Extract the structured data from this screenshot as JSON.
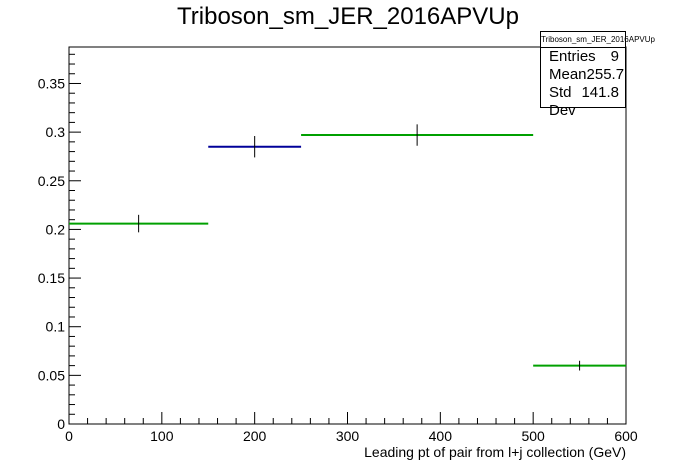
{
  "chart_data": {
    "type": "histogram",
    "title": "Triboson_sm_JER_2016APVUp",
    "xlabel": "Leading pt of pair from l+j collection (GeV)",
    "ylabel": "",
    "xlim": [
      0,
      600
    ],
    "ylim": [
      0,
      0.3875
    ],
    "x_ticks": [
      "0",
      "100",
      "200",
      "300",
      "400",
      "500",
      "600"
    ],
    "y_ticks": [
      "0",
      "0.05",
      "0.1",
      "0.15",
      "0.2",
      "0.25",
      "0.3",
      "0.35"
    ],
    "bins": [
      {
        "x_low": 0,
        "x_high": 150,
        "value": 0.206,
        "error": 0.009,
        "color": "#00a000"
      },
      {
        "x_low": 150,
        "x_high": 250,
        "value": 0.285,
        "error": 0.011,
        "color": "#000099"
      },
      {
        "x_low": 250,
        "x_high": 500,
        "value": 0.297,
        "error": 0.011,
        "color": "#00a000"
      },
      {
        "x_low": 500,
        "x_high": 600,
        "value": 0.06,
        "error": 0.005,
        "color": "#00a000"
      }
    ],
    "stats": {
      "title": "Triboson_sm_JER_2016APVUp",
      "rows": [
        {
          "label": "Entries",
          "value": "9"
        },
        {
          "label": "Mean",
          "value": "255.7"
        },
        {
          "label": "Std Dev",
          "value": "141.8"
        }
      ]
    }
  }
}
